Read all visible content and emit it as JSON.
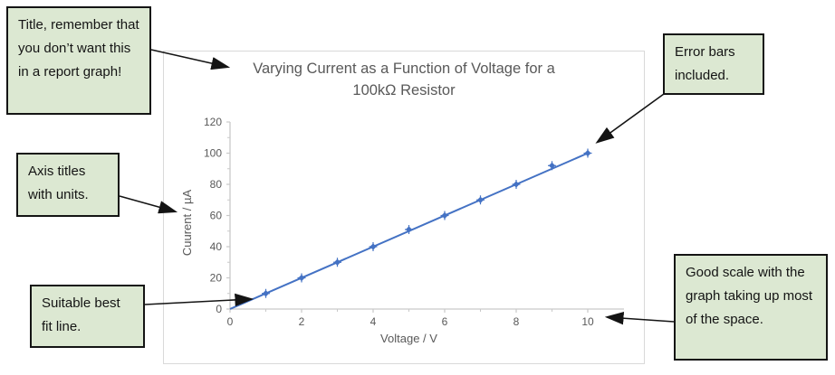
{
  "figure": {
    "background": "#ffffff"
  },
  "colors": {
    "callout_fill": "#dce8d2",
    "callout_border": "#141414",
    "arrow": "#141414",
    "series_blue": "#4472C4",
    "chart_text_gray": "#595959",
    "axis_line_gray": "#c9c9c9",
    "panel_border_gray": "#d9d9d9"
  },
  "panel": {
    "title_line1": "Varying Current as a Function of Voltage for a",
    "title_line2": "100kΩ Resistor"
  },
  "chart_data": {
    "type": "scatter",
    "title": "Varying Current as a Function of Voltage for a 100kΩ Resistor",
    "xlabel": "Voltage / V",
    "ylabel": "Cuurent / µA",
    "x": [
      1,
      2,
      3,
      4,
      5,
      6,
      7,
      8,
      9,
      10
    ],
    "y": [
      10,
      20,
      30,
      40,
      51,
      60,
      70,
      80,
      92,
      100
    ],
    "best_fit_line": {
      "x": [
        0,
        10
      ],
      "y": [
        0,
        100
      ]
    },
    "error_bars": true,
    "marker": "diamond",
    "xlim": [
      0,
      11
    ],
    "ylim": [
      0,
      120
    ],
    "x_ticks": [
      0,
      2,
      4,
      6,
      8,
      10
    ],
    "x_minor_ticks": [
      1,
      3,
      5,
      7,
      9
    ],
    "y_ticks": [
      0,
      20,
      40,
      60,
      80,
      100,
      120
    ],
    "y_minor_ticks": [
      10,
      30,
      50,
      70,
      90,
      110
    ],
    "grid": false,
    "legend": false
  },
  "callouts": [
    {
      "id": "title-note",
      "text": "Title, remember that you don’t want this in a report graph!"
    },
    {
      "id": "error-bars-note",
      "text": "Error bars included."
    },
    {
      "id": "axis-titles-note",
      "text": "Axis titles with units."
    },
    {
      "id": "best-fit-note",
      "text": "Suitable best fit line."
    },
    {
      "id": "scale-note",
      "text": "Good scale with the graph taking up most of the space."
    }
  ]
}
